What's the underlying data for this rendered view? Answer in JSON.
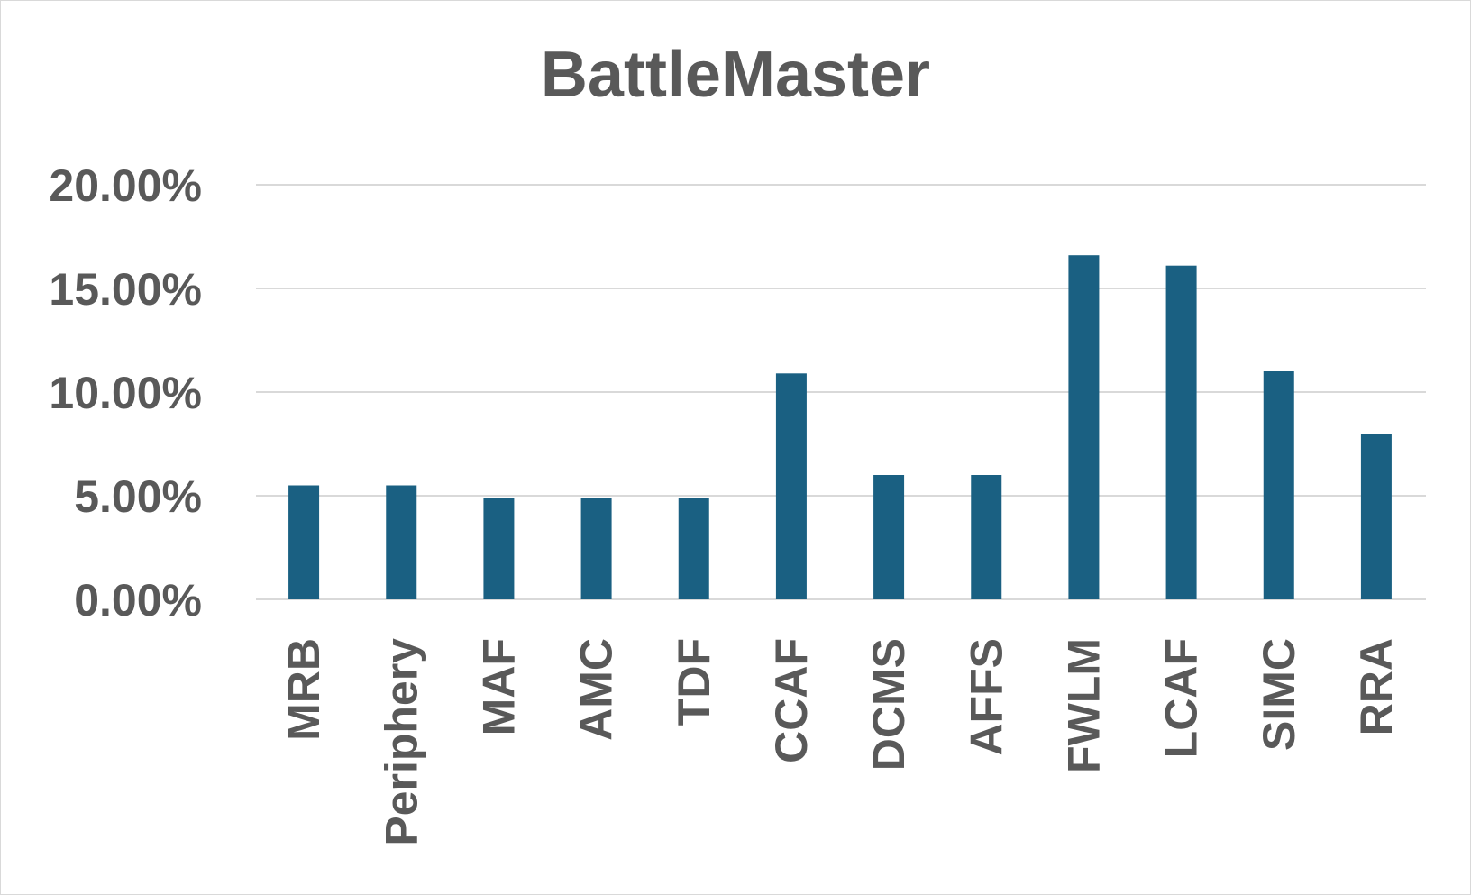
{
  "chart_data": {
    "type": "bar",
    "title": "BattleMaster",
    "xlabel": "",
    "ylabel": "",
    "categories": [
      "MRB",
      "Periphery",
      "MAF",
      "AMC",
      "TDF",
      "CCAF",
      "DCMS",
      "AFFS",
      "FWLM",
      "LCAF",
      "SIMC",
      "RRA"
    ],
    "series": [
      {
        "values": [
          5.5,
          5.5,
          4.9,
          4.9,
          4.9,
          10.9,
          6.0,
          6.0,
          16.6,
          16.1,
          11.0,
          8.0
        ]
      }
    ],
    "ylim": [
      0,
      20
    ],
    "yticks": [
      "0.00%",
      "5.00%",
      "10.00%",
      "15.00%",
      "20.00%"
    ],
    "ytick_values": [
      0,
      5,
      10,
      15,
      20
    ],
    "grid": true,
    "legend": "none",
    "bar_color": "#1a6082",
    "grid_color": "#d9d9d9",
    "text_color": "#595959"
  }
}
